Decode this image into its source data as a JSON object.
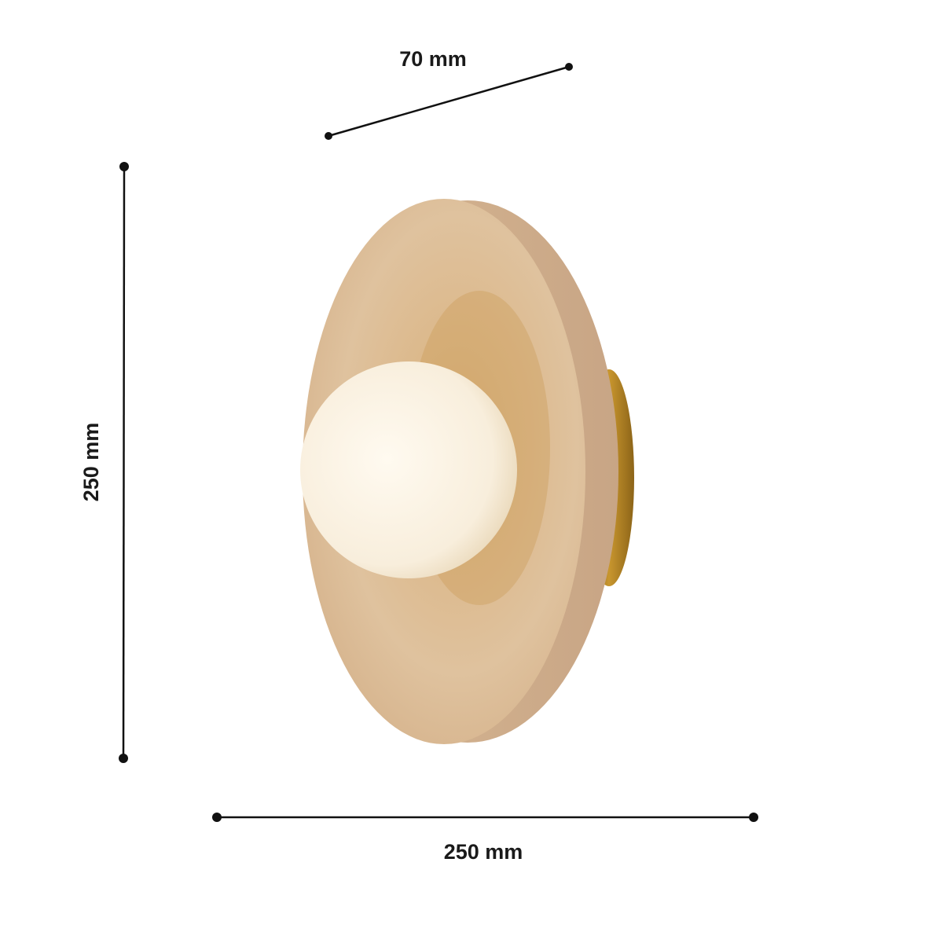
{
  "dimensions": {
    "depth": {
      "label": "70 mm",
      "value": 70,
      "unit": "mm"
    },
    "height": {
      "label": "250 mm",
      "value": 250,
      "unit": "mm"
    },
    "width": {
      "label": "250 mm",
      "value": 250,
      "unit": "mm"
    }
  },
  "product": {
    "colors": {
      "stone": "#dcb98f",
      "stone_dark": "#c9a173",
      "brass": "#b8862c",
      "globe": "#fbf4e6",
      "line": "#111111"
    }
  }
}
